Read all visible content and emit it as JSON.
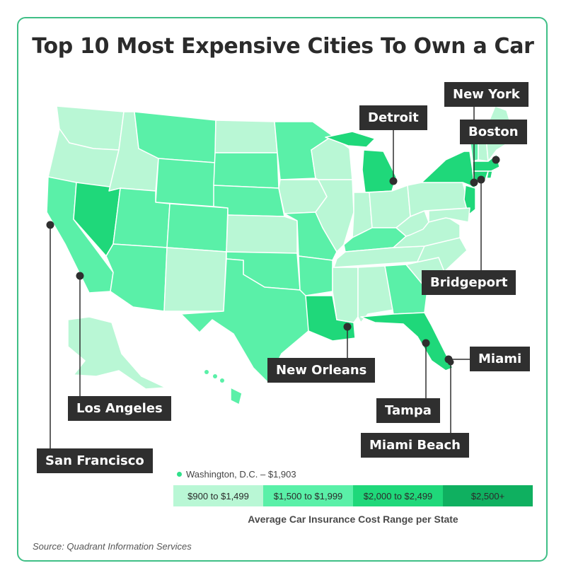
{
  "title": "Top 10 Most Expensive Cities To Own a Car",
  "colors": {
    "frame": "#3fbf86",
    "callout_bg": "#2f2f2f",
    "bin_900_1499": "#b9f7d5",
    "bin_1500_1999": "#5af0a8",
    "bin_2000_2499": "#1fd87a",
    "bin_2500_plus": "#0fb060"
  },
  "cities": [
    {
      "id": "new-york",
      "label": "New York"
    },
    {
      "id": "detroit",
      "label": "Detroit"
    },
    {
      "id": "boston",
      "label": "Boston"
    },
    {
      "id": "bridgeport",
      "label": "Bridgeport"
    },
    {
      "id": "miami",
      "label": "Miami"
    },
    {
      "id": "new-orleans",
      "label": "New Orleans"
    },
    {
      "id": "tampa",
      "label": "Tampa"
    },
    {
      "id": "miami-beach",
      "label": "Miami Beach"
    },
    {
      "id": "los-angeles",
      "label": "Los Angeles"
    },
    {
      "id": "san-francisco",
      "label": "San Francisco"
    }
  ],
  "dc_note": "Washington, D.C. – $1,903",
  "legend": {
    "bins": [
      {
        "label": "$900 to $1,499",
        "color": "#b9f7d5"
      },
      {
        "label": "$1,500 to $1,999",
        "color": "#5af0a8"
      },
      {
        "label": "$2,000 to $2,499",
        "color": "#1fd87a"
      },
      {
        "label": "$2,500+",
        "color": "#0fb060"
      }
    ],
    "caption": "Average Car Insurance Cost Range per State"
  },
  "source": "Source: Quadrant Information Services"
}
